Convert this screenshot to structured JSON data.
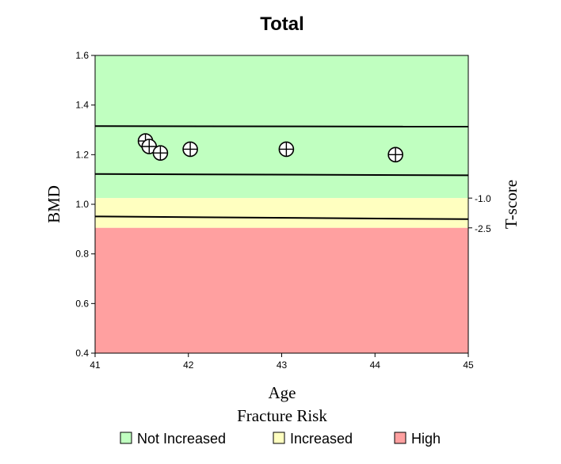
{
  "chart_data": {
    "type": "scatter",
    "title": "Total",
    "xlabel": "Age",
    "ylabel": "BMD",
    "y2label": "T-score",
    "xlim": [
      41,
      45
    ],
    "ylim": [
      0.4,
      1.6
    ],
    "xticks": [
      41,
      42,
      43,
      44,
      45
    ],
    "yticks": [
      "0.4",
      "0.6",
      "0.8",
      "1.0",
      "1.2",
      "1.4",
      "1.6"
    ],
    "bands": [
      {
        "name": "Not Increased",
        "from": 1.025,
        "to": 1.6,
        "color": "#c0ffc0"
      },
      {
        "name": "Increased",
        "from": 0.905,
        "to": 1.025,
        "color": "#ffffc0"
      },
      {
        "name": "High",
        "from": 0.4,
        "to": 0.905,
        "color": "#ffa0a0"
      }
    ],
    "reference_lines": [
      {
        "x": [
          41,
          45
        ],
        "y": [
          1.315,
          1.313
        ]
      },
      {
        "x": [
          41,
          45
        ],
        "y": [
          1.122,
          1.117
        ]
      },
      {
        "x": [
          41,
          45
        ],
        "y": [
          0.951,
          0.94
        ]
      }
    ],
    "tscore_labels": [
      {
        "label": "-1.0",
        "y": 1.025
      },
      {
        "label": "-2.5",
        "y": 0.905
      }
    ],
    "points": [
      {
        "x": 41.54,
        "y": 1.255
      },
      {
        "x": 41.58,
        "y": 1.233
      },
      {
        "x": 41.7,
        "y": 1.207
      },
      {
        "x": 42.02,
        "y": 1.222
      },
      {
        "x": 43.05,
        "y": 1.222
      },
      {
        "x": 44.22,
        "y": 1.2
      }
    ],
    "legend_title": "Fracture Risk",
    "legend": [
      {
        "label": "Not Increased",
        "color": "#c0ffc0"
      },
      {
        "label": "Increased",
        "color": "#ffffc0"
      },
      {
        "label": "High",
        "color": "#ffa0a0"
      }
    ]
  }
}
